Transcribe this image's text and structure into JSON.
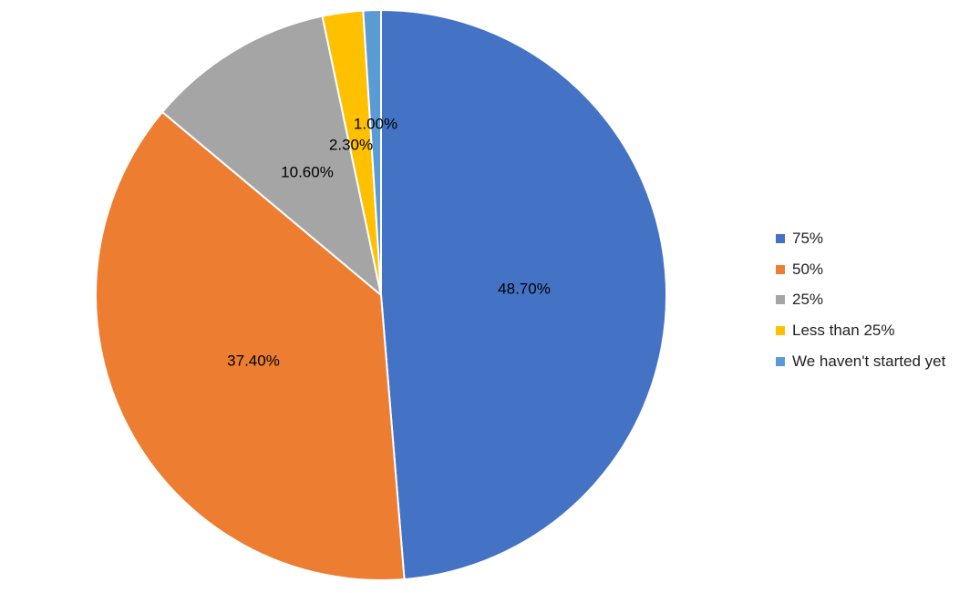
{
  "chart_data": {
    "type": "pie",
    "title": "",
    "slices": [
      {
        "name": "75%",
        "value": 48.7,
        "label": "48.70%",
        "color": "#4472C4"
      },
      {
        "name": "50%",
        "value": 37.4,
        "label": "37.40%",
        "color": "#ED7D31"
      },
      {
        "name": "25%",
        "value": 10.6,
        "label": "10.60%",
        "color": "#A5A5A5"
      },
      {
        "name": "Less than 25%",
        "value": 2.3,
        "label": "2.30%",
        "color": "#FFC000"
      },
      {
        "name": "We haven't started yet",
        "value": 1.0,
        "label": "1.00%",
        "color": "#5B9BD5"
      }
    ],
    "legend_position": "right"
  }
}
